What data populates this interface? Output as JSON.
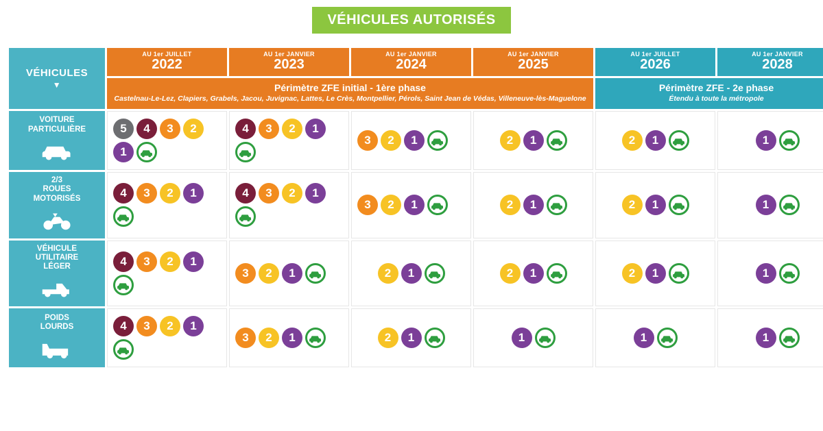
{
  "title": {
    "text": "VÉHICULES AUTORISÉS",
    "bg": "#8cc63f",
    "color": "#ffffff"
  },
  "colors": {
    "teal": "#4bb3c4",
    "orange_header": "#e77c22",
    "teal_header": "#2fa7bb",
    "cell_border": "#e6e6e6"
  },
  "crit_air": {
    "5": {
      "bg": "#6d6e71",
      "fg": "#ffffff"
    },
    "4": {
      "bg": "#7a1e3a",
      "fg": "#ffffff"
    },
    "3": {
      "bg": "#f28c1f",
      "fg": "#ffffff"
    },
    "2": {
      "bg": "#f7c325",
      "fg": "#ffffff"
    },
    "1": {
      "bg": "#7b3f98",
      "fg": "#ffffff"
    },
    "E": {
      "ring": "#2e9e3f",
      "car": "#2e9e3f"
    }
  },
  "columns": [
    {
      "pre": "AU 1er JUILLET",
      "year": "2022",
      "phase": 1
    },
    {
      "pre": "AU 1er JANVIER",
      "year": "2023",
      "phase": 1
    },
    {
      "pre": "AU 1er JANVIER",
      "year": "2024",
      "phase": 1
    },
    {
      "pre": "AU 1er JANVIER",
      "year": "2025",
      "phase": 1
    },
    {
      "pre": "AU 1er JUILLET",
      "year": "2026",
      "phase": 2
    },
    {
      "pre": "AU 1er JANVIER",
      "year": "2028",
      "phase": 2
    }
  ],
  "phases": {
    "1": {
      "bg": "#e77c22",
      "title": "Périmètre ZFE initial - 1ère phase",
      "sub": "Castelnau-Le-Lez, Clapiers, Grabels, Jacou, Juvignac, Lattes, Le Crès, Montpellier, Pérols, Saint Jean de Védas, Villeneuve-lès-Maguelone"
    },
    "2": {
      "bg": "#2fa7bb",
      "title": "Périmètre ZFE - 2e phase",
      "sub": "Étendu à toute la métropole"
    }
  },
  "row_header_bg": "#4bb3c4",
  "vehicles_label": "VÉHICULES",
  "rows": [
    {
      "label": "VOITURE PARTICULIÈRE",
      "icon": "car",
      "cells": [
        [
          "5",
          "4",
          "3",
          "2",
          "1",
          "E"
        ],
        [
          "4",
          "3",
          "2",
          "1",
          "E"
        ],
        [
          "3",
          "2",
          "1",
          "E"
        ],
        [
          "2",
          "1",
          "E"
        ],
        [
          "2",
          "1",
          "E"
        ],
        [
          "1",
          "E"
        ]
      ]
    },
    {
      "label": "2/3 ROUES MOTORISÉS",
      "icon": "moto",
      "cells": [
        [
          "4",
          "3",
          "2",
          "1",
          "E"
        ],
        [
          "4",
          "3",
          "2",
          "1",
          "E"
        ],
        [
          "3",
          "2",
          "1",
          "E"
        ],
        [
          "2",
          "1",
          "E"
        ],
        [
          "2",
          "1",
          "E"
        ],
        [
          "1",
          "E"
        ]
      ]
    },
    {
      "label": "VÉHICULE UTILITAIRE LÉGER",
      "icon": "pickup",
      "cells": [
        [
          "4",
          "3",
          "2",
          "1",
          "E"
        ],
        [
          "3",
          "2",
          "1",
          "E"
        ],
        [
          "2",
          "1",
          "E"
        ],
        [
          "2",
          "1",
          "E"
        ],
        [
          "2",
          "1",
          "E"
        ],
        [
          "1",
          "E"
        ]
      ]
    },
    {
      "label": "POIDS LOURDS",
      "icon": "truck",
      "cells": [
        [
          "4",
          "3",
          "2",
          "1",
          "E"
        ],
        [
          "3",
          "2",
          "1",
          "E"
        ],
        [
          "2",
          "1",
          "E"
        ],
        [
          "1",
          "E"
        ],
        [
          "1",
          "E"
        ],
        [
          "1",
          "E"
        ]
      ]
    }
  ]
}
